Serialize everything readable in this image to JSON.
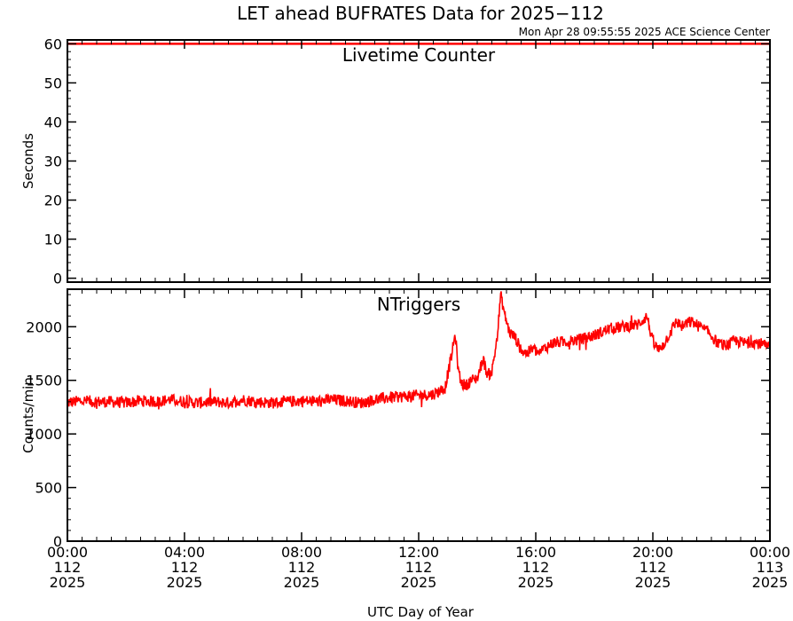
{
  "title": "LET ahead BUFRATES Data for 2025−112",
  "timestamp": "Mon Apr 28 09:55:55 2025 ACE Science Center",
  "xlabel": "UTC Day of Year",
  "colors": {
    "data": "#ff0000",
    "panel_label": "#0000ff",
    "axis": "#000000"
  },
  "x_ticks": [
    {
      "hours": 0,
      "time": "00:00",
      "doy": "112",
      "year": "2025"
    },
    {
      "hours": 4,
      "time": "04:00",
      "doy": "112",
      "year": "2025"
    },
    {
      "hours": 8,
      "time": "08:00",
      "doy": "112",
      "year": "2025"
    },
    {
      "hours": 12,
      "time": "12:00",
      "doy": "112",
      "year": "2025"
    },
    {
      "hours": 16,
      "time": "16:00",
      "doy": "112",
      "year": "2025"
    },
    {
      "hours": 20,
      "time": "20:00",
      "doy": "112",
      "year": "2025"
    },
    {
      "hours": 24,
      "time": "00:00",
      "doy": "113",
      "year": "2025"
    }
  ],
  "chart_data": [
    {
      "type": "line",
      "label": "Livetime Counter",
      "ylabel": "Seconds",
      "xlim": [
        0,
        24
      ],
      "ylim": [
        -1,
        61
      ],
      "y_ticks": [
        0,
        10,
        20,
        30,
        40,
        50,
        60
      ],
      "series": [
        {
          "x": [
            0,
            24
          ],
          "y": [
            60,
            60
          ]
        }
      ]
    },
    {
      "type": "line",
      "label": "NTriggers",
      "ylabel": "Counts/min",
      "xlim": [
        0,
        24
      ],
      "ylim": [
        0,
        2350
      ],
      "y_ticks": [
        0,
        500,
        1000,
        1500,
        2000
      ],
      "series": [
        {
          "x": [
            0,
            0.5,
            1,
            1.5,
            2,
            2.5,
            3,
            3.5,
            4,
            4.5,
            5,
            5.5,
            6,
            6.5,
            7,
            7.5,
            8,
            8.5,
            9,
            9.5,
            10,
            10.5,
            11,
            11.5,
            12,
            12.5,
            12.9,
            13.1,
            13.25,
            13.35,
            13.45,
            13.6,
            13.8,
            14,
            14.2,
            14.35,
            14.5,
            14.6,
            14.7,
            14.8,
            14.95,
            15.1,
            15.3,
            15.5,
            15.7,
            15.9,
            16.1,
            16.3,
            16.6,
            17,
            17.5,
            18,
            18.5,
            19,
            19.5,
            19.8,
            20,
            20.2,
            20.4,
            20.6,
            20.8,
            21,
            21.3,
            21.6,
            21.9,
            22.2,
            22.5,
            22.8,
            23.1,
            23.4,
            23.7,
            24
          ],
          "y": [
            1290,
            1310,
            1300,
            1300,
            1290,
            1310,
            1300,
            1320,
            1300,
            1290,
            1300,
            1290,
            1320,
            1300,
            1290,
            1300,
            1310,
            1300,
            1320,
            1310,
            1290,
            1320,
            1340,
            1350,
            1360,
            1370,
            1430,
            1700,
            1930,
            1600,
            1480,
            1450,
            1500,
            1520,
            1700,
            1550,
            1580,
            1750,
            1950,
            2300,
            2100,
            1950,
            1900,
            1780,
            1750,
            1800,
            1750,
            1800,
            1850,
            1860,
            1880,
            1920,
            1980,
            2000,
            2020,
            2100,
            1850,
            1780,
            1850,
            1950,
            2050,
            2000,
            2050,
            2000,
            1950,
            1850,
            1820,
            1870,
            1850,
            1860,
            1840,
            1800
          ]
        }
      ]
    }
  ]
}
